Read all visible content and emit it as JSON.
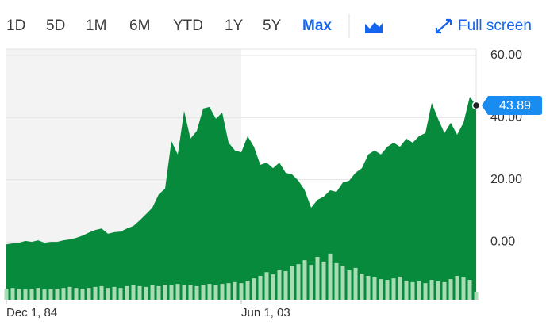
{
  "toolbar": {
    "ranges": [
      "1D",
      "5D",
      "1M",
      "6M",
      "YTD",
      "1Y",
      "5Y",
      "Max"
    ],
    "selected_range": 7,
    "fullscreen": "Full screen"
  },
  "chart_data": {
    "type": "area",
    "categories": [
      "Dec 1, 84",
      null,
      null,
      null,
      null,
      null,
      null,
      null,
      null,
      null,
      null,
      null,
      null,
      null,
      null,
      null,
      null,
      null,
      null,
      null,
      null,
      null,
      null,
      null,
      null,
      null,
      null,
      null,
      null,
      null,
      null,
      null,
      null,
      null,
      null,
      null,
      null,
      "Jun 1, 03",
      null,
      null,
      null,
      null,
      null,
      null,
      null,
      null,
      null,
      null,
      null,
      null,
      null,
      null,
      null,
      null,
      null,
      null,
      null,
      null,
      null,
      null,
      null,
      null,
      null,
      null,
      null,
      null,
      null,
      null,
      null,
      null,
      null,
      null,
      null,
      null,
      null
    ],
    "series": [
      {
        "color": "#078a3b",
        "values": [
          -0.8,
          -0.5,
          -0.3,
          0.3,
          0,
          0.5,
          -0.3,
          0,
          0,
          0.5,
          0.8,
          1.3,
          2,
          3,
          3.8,
          4.3,
          2.6,
          3.1,
          3.3,
          4.3,
          5.1,
          6.9,
          8.9,
          11,
          15.3,
          17.1,
          32.4,
          28.1,
          42.1,
          33.2,
          35.7,
          42.9,
          43.4,
          39.6,
          41.6,
          31.9,
          29.4,
          28.8,
          34,
          30.6,
          24.8,
          25.5,
          23.7,
          25.5,
          22.2,
          21.7,
          19.7,
          16.6,
          11,
          13.5,
          14.6,
          16.6,
          16.1,
          19.1,
          19.7,
          22.2,
          23.7,
          28.1,
          29.4,
          28.1,
          30.6,
          31.9,
          30.6,
          33.2,
          31.9,
          34,
          35,
          44.7,
          39.6,
          35,
          38.3,
          34.5,
          38.3,
          46.7,
          43.89
        ]
      },
      {
        "color": "#a9dcb5",
        "axis": "y2",
        "values": [
          4.4,
          4.7,
          4.4,
          4.1,
          4.4,
          4.7,
          4.1,
          4.4,
          4.4,
          4.7,
          5.1,
          4.7,
          4.4,
          4.7,
          5.1,
          5.4,
          4.7,
          5.1,
          4.7,
          5.4,
          5.7,
          5.4,
          5.1,
          5.7,
          5.4,
          6,
          5.7,
          6.3,
          5.7,
          6,
          5.4,
          6,
          6.3,
          5.7,
          6.3,
          6.6,
          7,
          6.6,
          7.6,
          8.5,
          9.5,
          11,
          10.1,
          12,
          11.4,
          13.3,
          14.2,
          15.8,
          13.9,
          17.1,
          15.2,
          18.4,
          14.6,
          13.3,
          11.7,
          12.7,
          10.4,
          9.5,
          8.9,
          8.2,
          7.9,
          8.5,
          9.2,
          7.6,
          7,
          7.3,
          6.6,
          7.9,
          7.3,
          7,
          8.2,
          9.5,
          8.9,
          7.9,
          3.2
        ]
      }
    ],
    "ylim": [
      -18.6,
      62
    ],
    "y2lim": [
      0,
      100
    ],
    "yticks": [
      {
        "value": 0,
        "label": "0.00"
      },
      {
        "value": 20,
        "label": "20.00"
      },
      {
        "value": 40,
        "label": "40.00"
      },
      {
        "value": 60,
        "label": "60.00"
      }
    ],
    "grid": true
  }
}
